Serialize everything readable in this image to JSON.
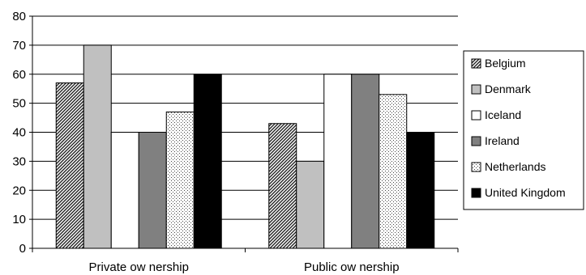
{
  "chart_data": {
    "type": "bar",
    "categories": [
      "Private ow nership",
      "Public ow nership"
    ],
    "series": [
      {
        "name": "Belgium",
        "values": [
          57,
          43
        ],
        "fill": "hatch-diag",
        "color": "#333333"
      },
      {
        "name": "Denmark",
        "values": [
          70,
          30
        ],
        "fill": "solid",
        "color": "#c0c0c0"
      },
      {
        "name": "Iceland",
        "values": [
          40,
          60
        ],
        "fill": "solid",
        "color": "#ffffff"
      },
      {
        "name": "Ireland",
        "values": [
          40,
          60
        ],
        "fill": "solid",
        "color": "#808080"
      },
      {
        "name": "Netherlands",
        "values": [
          47,
          53
        ],
        "fill": "dots",
        "color": "#f2f2f2"
      },
      {
        "name": "United Kingdom",
        "values": [
          60,
          40
        ],
        "fill": "solid",
        "color": "#000000"
      }
    ],
    "yticks": [
      0,
      10,
      20,
      30,
      40,
      50,
      60,
      70,
      80
    ],
    "ylim": [
      0,
      80
    ],
    "grid": true,
    "legend_position": "right"
  }
}
